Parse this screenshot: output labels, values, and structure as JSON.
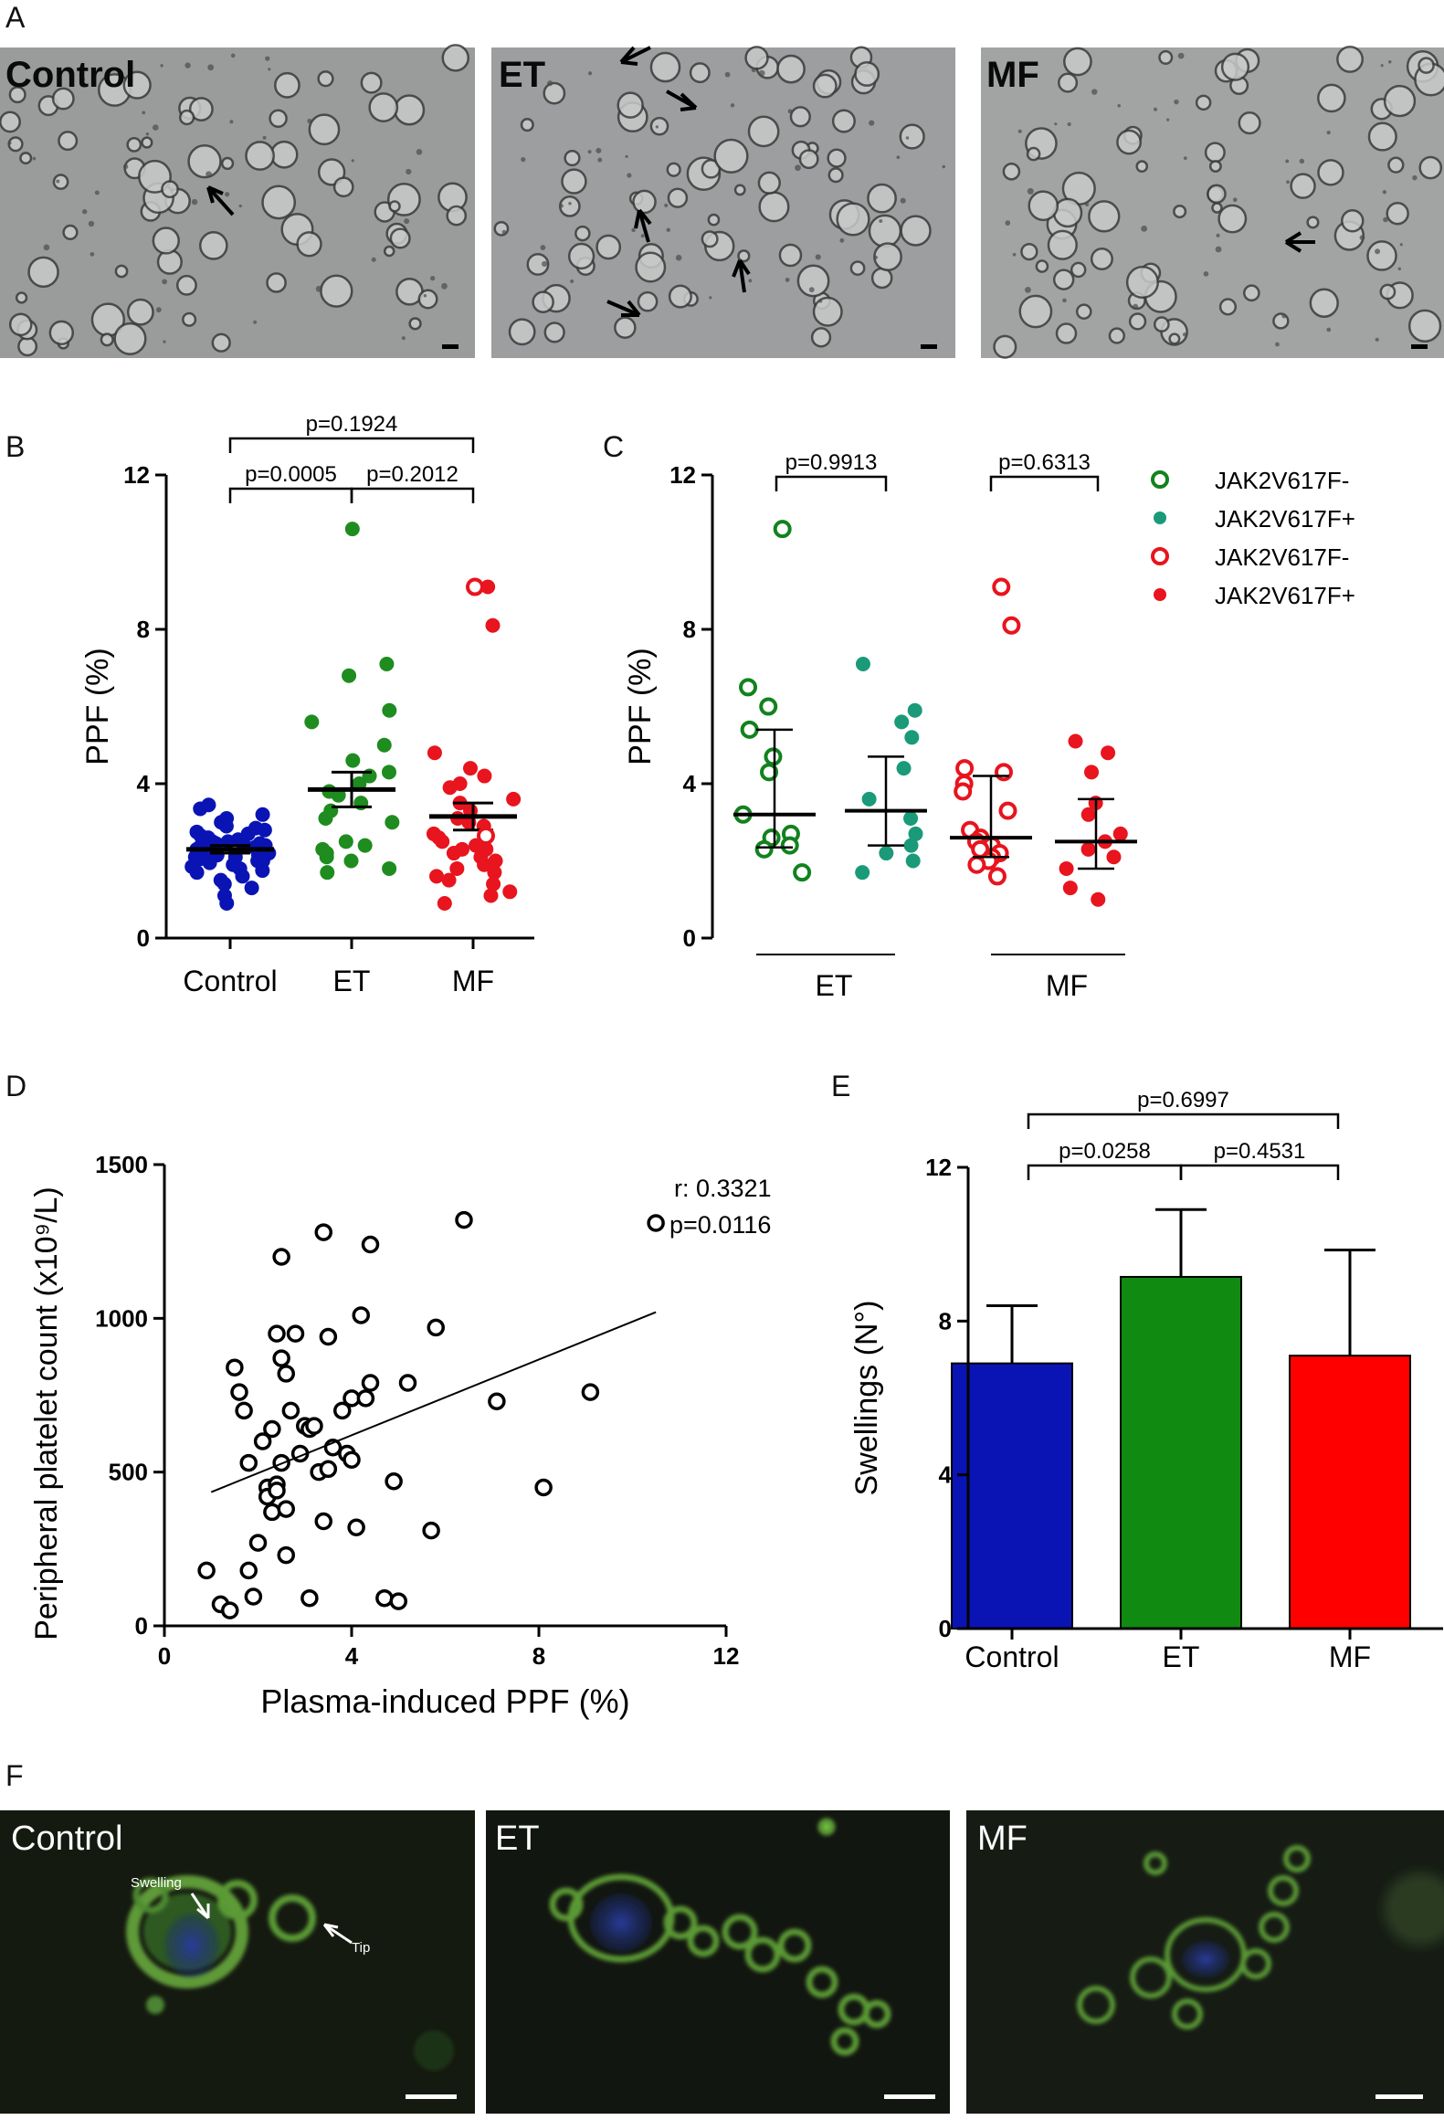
{
  "panel_letters": {
    "A": "A",
    "B": "B",
    "C": "C",
    "D": "D",
    "E": "E",
    "F": "F"
  },
  "panelA": {
    "images": [
      {
        "label": "Control",
        "bg": "#9a9c9c"
      },
      {
        "label": "ET",
        "bg": "#9c9e9f"
      },
      {
        "label": "MF",
        "bg": "#a2a4a4"
      }
    ]
  },
  "panelF": {
    "images": [
      {
        "label": "Control",
        "bg": "#151a10"
      },
      {
        "label": "ET",
        "bg": "#121610"
      },
      {
        "label": "MF",
        "bg": "#161c14"
      }
    ],
    "annotations": {
      "swelling": "Swelling",
      "tip": "Tip"
    }
  },
  "colors": {
    "blue": "#0a14b4",
    "green": "#1e8c1e",
    "teal": "#1a9a78",
    "red": "#e8141e",
    "darkgreen": "#12821e"
  },
  "chart_data": [
    {
      "id": "B",
      "type": "scatter",
      "ylabel": "PPF (%)",
      "ylim": [
        0,
        12
      ],
      "yticks": [
        "0",
        "4",
        "8",
        "12"
      ],
      "categories": [
        "Control",
        "ET",
        "MF"
      ],
      "means": [
        2.3,
        3.85,
        3.15
      ],
      "sem": [
        0.1,
        0.45,
        0.35
      ],
      "comparisons": [
        {
          "a": 0,
          "b": 1,
          "text": "p=0.0005"
        },
        {
          "a": 1,
          "b": 2,
          "text": "p=0.2012"
        },
        {
          "a": 0,
          "b": 2,
          "text": "p=0.1924"
        }
      ],
      "series": [
        {
          "name": "Control",
          "color": "#0a14b4",
          "values": [
            3.45,
            3.35,
            3.2,
            3.1,
            3.0,
            2.9,
            2.85,
            2.8,
            2.75,
            2.7,
            2.65,
            2.6,
            2.55,
            2.5,
            2.5,
            2.45,
            2.45,
            2.4,
            2.4,
            2.35,
            2.35,
            2.3,
            2.3,
            2.3,
            2.25,
            2.25,
            2.2,
            2.2,
            2.15,
            2.15,
            2.1,
            2.1,
            2.05,
            2.0,
            2.0,
            1.95,
            1.9,
            1.85,
            1.8,
            1.75,
            1.7,
            1.6,
            1.5,
            1.4,
            1.3,
            1.1,
            0.9
          ]
        },
        {
          "name": "ET",
          "color": "#1e8c1e",
          "values": [
            10.6,
            7.1,
            6.8,
            5.9,
            5.6,
            5.0,
            4.6,
            4.3,
            4.2,
            4.0,
            3.8,
            3.7,
            3.5,
            3.3,
            3.1,
            3.0,
            2.5,
            2.4,
            2.3,
            2.2,
            2.1,
            2.0,
            1.8,
            1.7
          ]
        },
        {
          "name": "MF",
          "color": "#e8141e",
          "values": [
            9.1,
            8.1,
            4.8,
            4.4,
            4.2,
            4.0,
            3.9,
            3.6,
            3.5,
            3.3,
            3.1,
            3.0,
            2.9,
            2.7,
            2.6,
            2.5,
            2.4,
            2.3,
            2.3,
            2.2,
            2.1,
            2.0,
            1.9,
            1.8,
            1.7,
            1.6,
            1.5,
            1.4,
            1.2,
            1.1,
            0.9
          ]
        }
      ]
    },
    {
      "id": "C",
      "type": "scatter",
      "ylabel": "PPF (%)",
      "ylim": [
        0,
        12
      ],
      "yticks": [
        "0",
        "4",
        "8",
        "12"
      ],
      "group_labels": [
        "ET",
        "MF"
      ],
      "legend": [
        {
          "label": "JAK2V617F-",
          "color": "#12821e",
          "open": true
        },
        {
          "label": "JAK2V617F+",
          "color": "#1a9a78",
          "open": false
        },
        {
          "label": "JAK2V617F-",
          "color": "#e8141e",
          "open": true
        },
        {
          "label": "JAK2V617F+",
          "color": "#e8141e",
          "open": false
        }
      ],
      "comparisons": [
        {
          "a": 0,
          "b": 1,
          "text": "p=0.9913"
        },
        {
          "a": 2,
          "b": 3,
          "text": "p=0.6313"
        }
      ],
      "series": [
        {
          "name": "ET JAK2V617F-",
          "color": "#12821e",
          "open": true,
          "median": 3.2,
          "q1": 2.35,
          "q3": 5.4,
          "values": [
            10.6,
            6.5,
            6.0,
            5.4,
            4.7,
            4.3,
            3.2,
            2.7,
            2.6,
            2.4,
            2.3,
            1.7
          ]
        },
        {
          "name": "ET JAK2V617F+",
          "color": "#1a9a78",
          "open": false,
          "median": 3.3,
          "q1": 2.4,
          "q3": 4.7,
          "values": [
            7.1,
            5.9,
            5.6,
            5.2,
            4.4,
            3.6,
            3.1,
            2.7,
            2.4,
            2.2,
            2.0,
            1.7
          ]
        },
        {
          "name": "MF JAK2V617F-",
          "color": "#e8141e",
          "open": true,
          "median": 2.6,
          "q1": 2.1,
          "q3": 4.2,
          "values": [
            9.1,
            8.1,
            4.4,
            4.3,
            4.0,
            3.8,
            3.3,
            2.8,
            2.6,
            2.5,
            2.4,
            2.3,
            2.2,
            2.1,
            2.0,
            1.9,
            1.6
          ]
        },
        {
          "name": "MF JAK2V617F+",
          "color": "#e8141e",
          "open": false,
          "median": 2.5,
          "q1": 1.8,
          "q3": 3.6,
          "values": [
            5.1,
            4.8,
            4.3,
            3.5,
            3.2,
            2.7,
            2.5,
            2.3,
            2.1,
            1.8,
            1.3,
            1.0
          ]
        }
      ]
    },
    {
      "id": "D",
      "type": "scatter",
      "xlabel": "Plasma-induced PPF (%)",
      "ylabel": "Peripheral platelet count (x10⁹/L)",
      "xlim": [
        0,
        12
      ],
      "ylim": [
        0,
        1500
      ],
      "xticks": [
        "0",
        "4",
        "8",
        "12"
      ],
      "yticks": [
        "0",
        "500",
        "1000",
        "1500"
      ],
      "stats": {
        "r": "r: 0.3321",
        "p": "p=0.0116"
      },
      "fit": {
        "x0": 1.0,
        "y0": 435,
        "x1": 10.5,
        "y1": 1020
      },
      "points": [
        [
          0.9,
          180
        ],
        [
          1.2,
          70
        ],
        [
          1.4,
          50
        ],
        [
          1.5,
          840
        ],
        [
          1.6,
          760
        ],
        [
          1.7,
          700
        ],
        [
          1.8,
          530
        ],
        [
          1.8,
          180
        ],
        [
          1.9,
          95
        ],
        [
          2.0,
          270
        ],
        [
          2.1,
          600
        ],
        [
          2.2,
          450
        ],
        [
          2.2,
          420
        ],
        [
          2.3,
          640
        ],
        [
          2.3,
          370
        ],
        [
          2.4,
          950
        ],
        [
          2.4,
          460
        ],
        [
          2.4,
          440
        ],
        [
          2.5,
          1200
        ],
        [
          2.5,
          870
        ],
        [
          2.5,
          530
        ],
        [
          2.6,
          820
        ],
        [
          2.6,
          380
        ],
        [
          2.6,
          230
        ],
        [
          2.7,
          700
        ],
        [
          2.8,
          950
        ],
        [
          2.9,
          560
        ],
        [
          3.0,
          650
        ],
        [
          3.1,
          640
        ],
        [
          3.1,
          90
        ],
        [
          3.2,
          650
        ],
        [
          3.3,
          500
        ],
        [
          3.4,
          1280
        ],
        [
          3.4,
          340
        ],
        [
          3.5,
          510
        ],
        [
          3.5,
          940
        ],
        [
          3.6,
          580
        ],
        [
          3.8,
          700
        ],
        [
          3.9,
          560
        ],
        [
          4.0,
          740
        ],
        [
          4.0,
          540
        ],
        [
          4.1,
          320
        ],
        [
          4.2,
          1010
        ],
        [
          4.3,
          740
        ],
        [
          4.4,
          790
        ],
        [
          4.4,
          1240
        ],
        [
          4.7,
          90
        ],
        [
          4.9,
          470
        ],
        [
          5.0,
          80
        ],
        [
          5.2,
          790
        ],
        [
          5.7,
          310
        ],
        [
          5.8,
          970
        ],
        [
          6.4,
          1320
        ],
        [
          7.1,
          730
        ],
        [
          8.1,
          450
        ],
        [
          9.1,
          760
        ],
        [
          10.5,
          1310
        ]
      ]
    },
    {
      "id": "E",
      "type": "bar",
      "ylabel": "Swellings (N°)",
      "ylim": [
        0,
        12
      ],
      "yticks": [
        "0",
        "4",
        "8",
        "12"
      ],
      "categories": [
        "Control",
        "ET",
        "MF"
      ],
      "values": [
        6.9,
        9.15,
        7.1
      ],
      "errors": [
        1.5,
        1.75,
        2.75
      ],
      "colors": [
        "#0a14b4",
        "#118a11",
        "#ff0000"
      ],
      "comparisons": [
        {
          "a": 0,
          "b": 1,
          "text": "p=0.0258"
        },
        {
          "a": 1,
          "b": 2,
          "text": "p=0.4531"
        },
        {
          "a": 0,
          "b": 2,
          "text": "p=0.6997"
        }
      ]
    }
  ]
}
